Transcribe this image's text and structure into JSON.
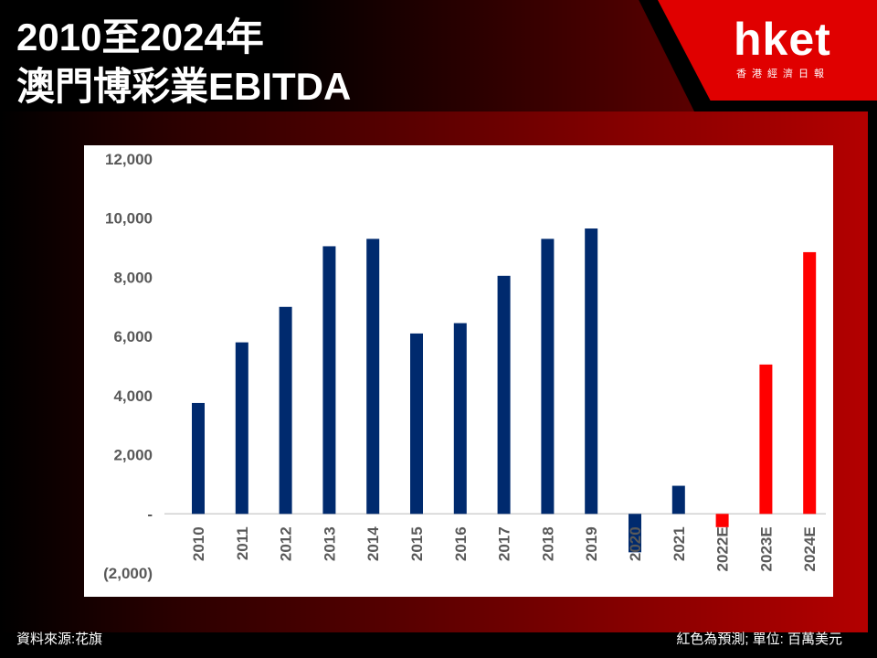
{
  "header": {
    "title_line1": "2010至2024年",
    "title_line2": "澳門博彩業EBITDA",
    "logo_text": "hket",
    "logo_sub": "香港經濟日報"
  },
  "footer": {
    "source": "資料來源:花旗",
    "note": "紅色為預測; 單位: 百萬美元"
  },
  "colors": {
    "actual": "#002a6e",
    "forecast": "#ff0000"
  },
  "chart_data": {
    "type": "bar",
    "categories": [
      "2010",
      "2011",
      "2012",
      "2013",
      "2014",
      "2015",
      "2016",
      "2017",
      "2018",
      "2019",
      "2020",
      "2021",
      "2022E",
      "2023E",
      "2024E"
    ],
    "values": [
      3750,
      5800,
      7000,
      9050,
      9300,
      6100,
      6450,
      8050,
      9300,
      9650,
      -1300,
      950,
      -450,
      5050,
      8850
    ],
    "forecast": [
      false,
      false,
      false,
      false,
      false,
      false,
      false,
      false,
      false,
      false,
      false,
      false,
      true,
      true,
      true
    ],
    "ylim": [
      -2000,
      12000
    ],
    "yticks": [
      -2000,
      0,
      2000,
      4000,
      6000,
      8000,
      10000,
      12000
    ],
    "ytick_labels": [
      "(2,000)",
      "-",
      "2,000",
      "4,000",
      "6,000",
      "8,000",
      "10,000",
      "12,000"
    ],
    "grid": false,
    "title": "",
    "xlabel": "",
    "ylabel": ""
  }
}
